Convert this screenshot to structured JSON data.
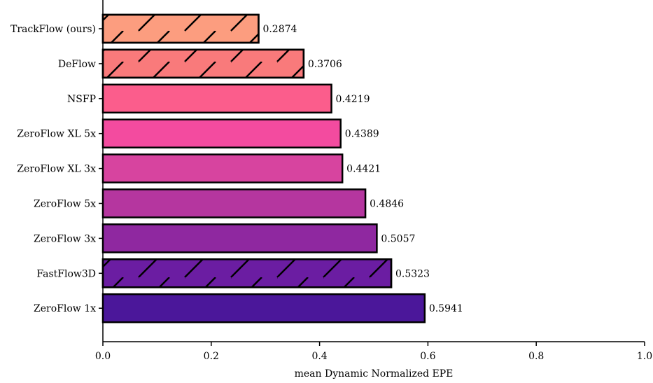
{
  "chart_data": {
    "type": "bar",
    "orientation": "horizontal",
    "categories": [
      "TrackFlow (ours)",
      "DeFlow",
      "NSFP",
      "ZeroFlow XL 5x",
      "ZeroFlow XL 3x",
      "ZeroFlow 5x",
      "ZeroFlow 3x",
      "FastFlow3D",
      "ZeroFlow 1x"
    ],
    "values": [
      0.2874,
      0.3706,
      0.4219,
      0.4389,
      0.4421,
      0.4846,
      0.5057,
      0.5323,
      0.5941
    ],
    "value_labels": [
      "0.2874",
      "0.3706",
      "0.4219",
      "0.4389",
      "0.4421",
      "0.4846",
      "0.5057",
      "0.5323",
      "0.5941"
    ],
    "colors": [
      "#fc9d7f",
      "#f97a7b",
      "#fb5d8c",
      "#f34b9f",
      "#d7449f",
      "#b5369f",
      "#8f28a0",
      "#6b1da2",
      "#4b179a"
    ],
    "hatched": [
      true,
      true,
      false,
      false,
      false,
      false,
      false,
      true,
      false
    ],
    "edge_color": "#000000",
    "xlabel": "mean Dynamic Normalized EPE",
    "ylabel": "",
    "title": "",
    "xlim": [
      0.0,
      1.0
    ],
    "xticks": [
      0.0,
      0.2,
      0.4,
      0.6,
      0.8,
      1.0
    ],
    "xtick_labels": [
      "0.0",
      "0.2",
      "0.4",
      "0.6",
      "0.8",
      "1.0"
    ],
    "grid": false,
    "legend": null
  }
}
